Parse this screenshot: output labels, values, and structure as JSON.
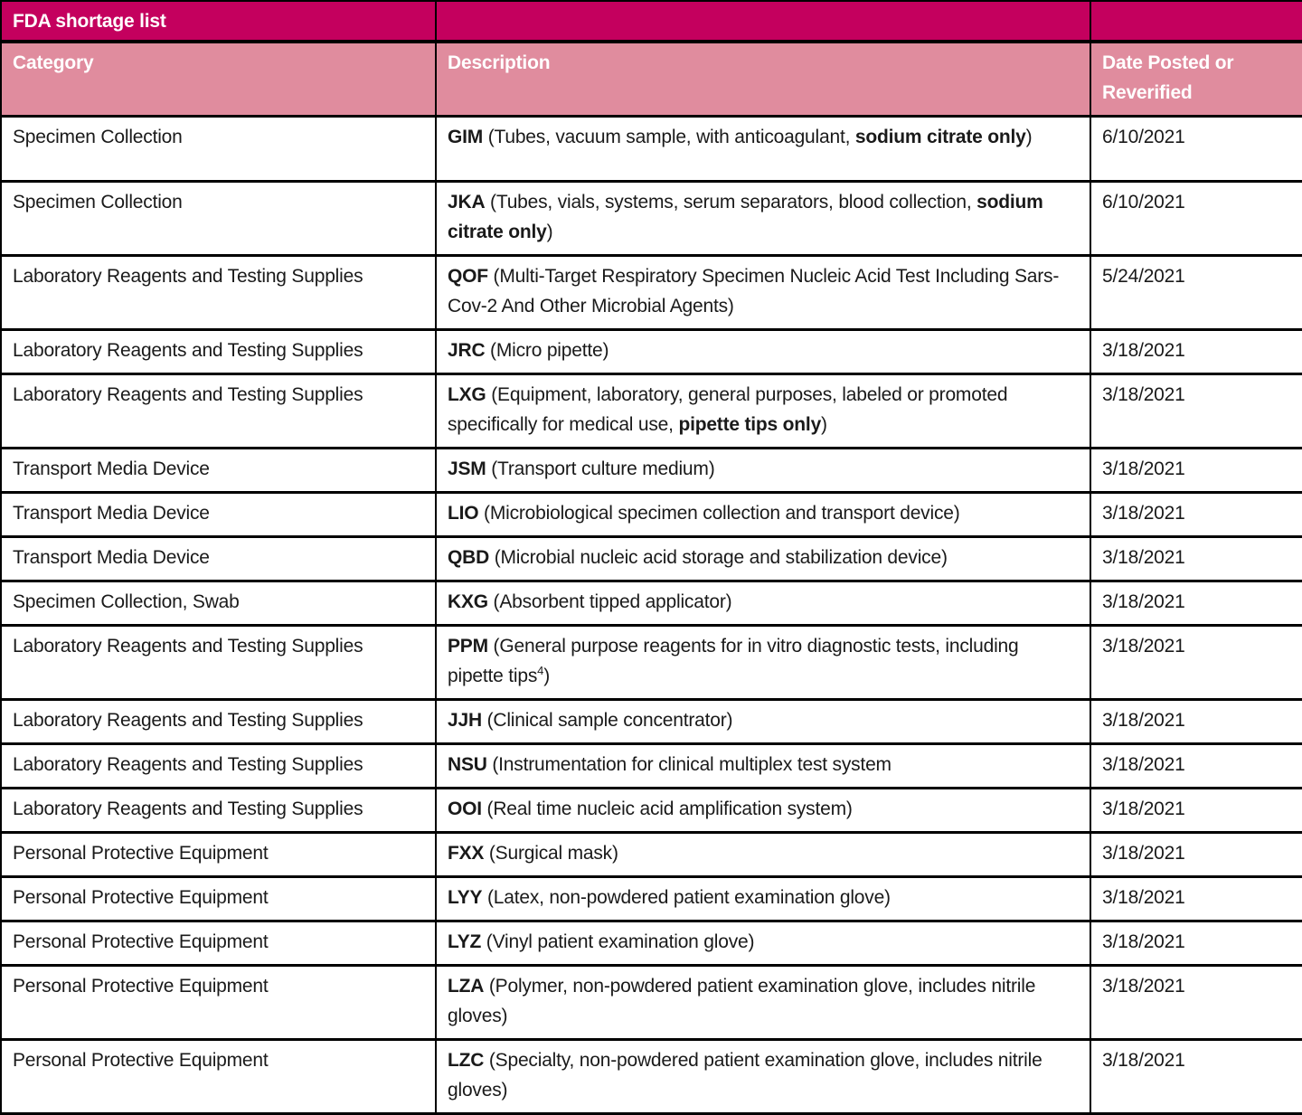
{
  "colors": {
    "title_bg": "#C4005E",
    "header_bg": "#E08C9E",
    "border": "#000000",
    "header_text": "#FFFFFF",
    "body_text": "#1A1A1A"
  },
  "table": {
    "title": "FDA shortage list",
    "columns": {
      "category": "Category",
      "description": "Description",
      "date": "Date Posted or Reverified"
    },
    "rows": [
      {
        "category": "Specimen Collection",
        "date": "6/10/2021",
        "lines": 2,
        "description": [
          {
            "text": "GIM",
            "bold": true
          },
          {
            "text": " (Tubes, vacuum sample, with anticoagulant, ",
            "bold": false
          },
          {
            "text": "sodium citrate only",
            "bold": true
          },
          {
            "text": ")",
            "bold": false
          }
        ]
      },
      {
        "category": "Specimen Collection",
        "date": "6/10/2021",
        "lines": 2,
        "description": [
          {
            "text": "JKA",
            "bold": true
          },
          {
            "text": " (Tubes, vials, systems, serum separators, blood collection, ",
            "bold": false
          },
          {
            "text": "sodium citrate only",
            "bold": true
          },
          {
            "text": ")",
            "bold": false
          }
        ]
      },
      {
        "category": "Laboratory Reagents and Testing Supplies",
        "date": "5/24/2021",
        "lines": 2,
        "description": [
          {
            "text": "QOF",
            "bold": true
          },
          {
            "text": " (Multi-Target Respiratory Specimen Nucleic Acid Test Including Sars-Cov-2 And Other Microbial Agents)",
            "bold": false
          }
        ]
      },
      {
        "category": "Laboratory Reagents and Testing Supplies",
        "date": "3/18/2021",
        "lines": 1,
        "description": [
          {
            "text": "JRC",
            "bold": true
          },
          {
            "text": " (Micro pipette)",
            "bold": false
          }
        ]
      },
      {
        "category": "Laboratory Reagents and Testing Supplies",
        "date": "3/18/2021",
        "lines": 2,
        "description": [
          {
            "text": "LXG",
            "bold": true
          },
          {
            "text": " (Equipment, laboratory, general purposes, labeled or promoted specifically for medical use, ",
            "bold": false
          },
          {
            "text": "pipette tips only",
            "bold": true
          },
          {
            "text": ")",
            "bold": false
          }
        ]
      },
      {
        "category": "Transport Media Device",
        "date": "3/18/2021",
        "lines": 1,
        "description": [
          {
            "text": "JSM",
            "bold": true
          },
          {
            "text": " (Transport culture medium)",
            "bold": false
          }
        ]
      },
      {
        "category": "Transport Media Device",
        "date": "3/18/2021",
        "lines": 1,
        "description": [
          {
            "text": "LIO",
            "bold": true
          },
          {
            "text": " (Microbiological specimen collection and transport device)",
            "bold": false
          }
        ]
      },
      {
        "category": "Transport Media Device",
        "date": "3/18/2021",
        "lines": 1,
        "description": [
          {
            "text": "QBD",
            "bold": true
          },
          {
            "text": " (Microbial nucleic acid storage and stabilization device)",
            "bold": false
          }
        ]
      },
      {
        "category": "Specimen Collection, Swab",
        "date": "3/18/2021",
        "lines": 1,
        "description": [
          {
            "text": "KXG",
            "bold": true
          },
          {
            "text": " (Absorbent tipped applicator)",
            "bold": false
          }
        ]
      },
      {
        "category": "Laboratory Reagents and Testing Supplies",
        "date": "3/18/2021",
        "lines": 2,
        "description": [
          {
            "text": "PPM",
            "bold": true
          },
          {
            "text": " (General purpose reagents for in vitro diagnostic tests, including pipette tips",
            "bold": false
          },
          {
            "text": "4",
            "bold": false,
            "sup": true
          },
          {
            "text": ")",
            "bold": false
          }
        ]
      },
      {
        "category": "Laboratory Reagents and Testing Supplies",
        "date": "3/18/2021",
        "lines": 1,
        "description": [
          {
            "text": "JJH",
            "bold": true
          },
          {
            "text": " (Clinical sample concentrator)",
            "bold": false
          }
        ]
      },
      {
        "category": "Laboratory Reagents and Testing Supplies",
        "date": "3/18/2021",
        "lines": 1,
        "description": [
          {
            "text": "NSU",
            "bold": true
          },
          {
            "text": " (Instrumentation for clinical multiplex test system",
            "bold": false
          }
        ]
      },
      {
        "category": "Laboratory Reagents and Testing Supplies",
        "date": "3/18/2021",
        "lines": 1,
        "description": [
          {
            "text": "OOI",
            "bold": true
          },
          {
            "text": " (Real time nucleic acid amplification system)",
            "bold": false
          }
        ]
      },
      {
        "category": "Personal Protective Equipment",
        "date": "3/18/2021",
        "lines": 1,
        "description": [
          {
            "text": "FXX",
            "bold": true
          },
          {
            "text": " (Surgical mask)",
            "bold": false
          }
        ]
      },
      {
        "category": "Personal Protective Equipment",
        "date": "3/18/2021",
        "lines": 1,
        "description": [
          {
            "text": "LYY",
            "bold": true
          },
          {
            "text": " (Latex, non-powdered patient examination glove)",
            "bold": false
          }
        ]
      },
      {
        "category": "Personal Protective Equipment",
        "date": "3/18/2021",
        "lines": 1,
        "description": [
          {
            "text": "LYZ",
            "bold": true
          },
          {
            "text": " (Vinyl patient examination glove)",
            "bold": false
          }
        ]
      },
      {
        "category": "Personal Protective Equipment",
        "date": "3/18/2021",
        "lines": 2,
        "description": [
          {
            "text": "LZA",
            "bold": true
          },
          {
            "text": " (Polymer, non-powdered patient examination glove, includes nitrile gloves)",
            "bold": false
          }
        ]
      },
      {
        "category": "Personal Protective Equipment",
        "date": "3/18/2021",
        "lines": 2,
        "description": [
          {
            "text": "LZC",
            "bold": true
          },
          {
            "text": " (Specialty, non-powdered patient examination glove, includes nitrile gloves)",
            "bold": false
          }
        ]
      }
    ]
  }
}
